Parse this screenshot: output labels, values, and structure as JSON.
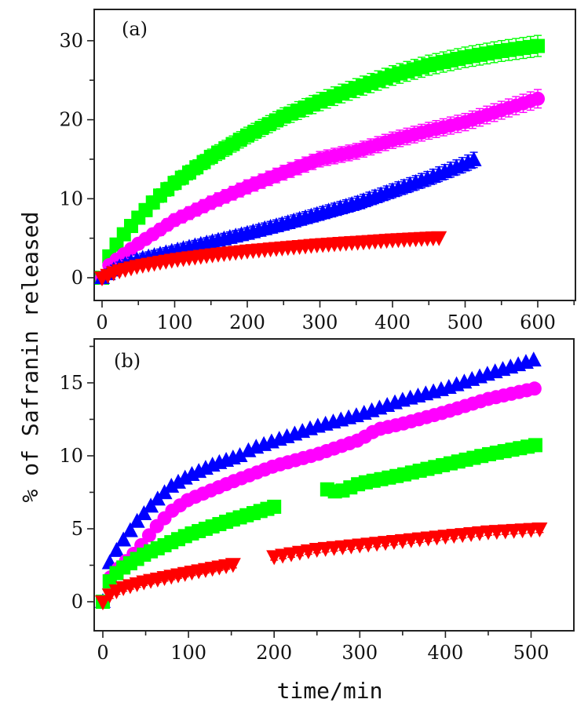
{
  "chart_data": [
    {
      "type": "scatter",
      "panel_label": "(a)",
      "xlabel": "",
      "ylabel": "% of Safranin released",
      "xlim": [
        -10,
        700
      ],
      "ylim": [
        -3,
        32
      ],
      "xticks": [
        0,
        100,
        200,
        300,
        400,
        500,
        600
      ],
      "yticks": [
        0,
        10,
        20,
        30
      ],
      "grid": false,
      "legend": "none",
      "series": [
        {
          "name": "green-squares",
          "marker": "square",
          "color": "#00ff00",
          "error_bars": true,
          "x_start": 0,
          "x_end": 605,
          "x_step": 10,
          "points": [
            [
              0,
              0
            ],
            [
              10,
              2.7
            ],
            [
              20,
              4.2
            ],
            [
              30,
              5.5
            ],
            [
              50,
              7.6
            ],
            [
              75,
              10
            ],
            [
              100,
              12
            ],
            [
              150,
              15.3
            ],
            [
              200,
              18
            ],
            [
              250,
              20.4
            ],
            [
              300,
              22.3
            ],
            [
              350,
              24
            ],
            [
              400,
              25.6
            ],
            [
              450,
              26.9
            ],
            [
              500,
              27.9
            ],
            [
              550,
              28.7
            ],
            [
              605,
              29.4
            ]
          ]
        },
        {
          "name": "magenta-circles",
          "marker": "circle",
          "color": "#ff00ff",
          "error_bars": true,
          "x_start": 0,
          "x_end": 605,
          "x_step": 10,
          "points": [
            [
              0,
              0
            ],
            [
              10,
              1.6
            ],
            [
              20,
              2.3
            ],
            [
              50,
              4.3
            ],
            [
              100,
              7.3
            ],
            [
              150,
              9.5
            ],
            [
              200,
              11.5
            ],
            [
              250,
              13.3
            ],
            [
              300,
              15
            ],
            [
              350,
              16
            ],
            [
              400,
              17.4
            ],
            [
              450,
              18.6
            ],
            [
              500,
              19.7
            ],
            [
              550,
              21.2
            ],
            [
              605,
              22.8
            ]
          ]
        },
        {
          "name": "blue-triangles",
          "marker": "triangle-up",
          "color": "#0000ff",
          "error_bars": true,
          "x_start": 0,
          "x_end": 519,
          "x_step": 8,
          "points": [
            [
              0,
              0
            ],
            [
              20,
              1.2
            ],
            [
              50,
              2.3
            ],
            [
              100,
              3.4
            ],
            [
              150,
              4.5
            ],
            [
              200,
              5.6
            ],
            [
              250,
              6.8
            ],
            [
              300,
              8.1
            ],
            [
              350,
              9.4
            ],
            [
              400,
              11
            ],
            [
              450,
              12.6
            ],
            [
              500,
              14.4
            ],
            [
              519,
              15.2
            ]
          ]
        },
        {
          "name": "red-inverted-triangles",
          "marker": "triangle-down",
          "color": "#ff0000",
          "error_bars": false,
          "x_start": 0,
          "x_end": 465,
          "x_step": 8,
          "points": [
            [
              0,
              0
            ],
            [
              20,
              0.8
            ],
            [
              50,
              1.5
            ],
            [
              100,
              2.3
            ],
            [
              150,
              2.9
            ],
            [
              200,
              3.4
            ],
            [
              250,
              3.8
            ],
            [
              300,
              4.2
            ],
            [
              350,
              4.5
            ],
            [
              400,
              4.8
            ],
            [
              465,
              5.1
            ]
          ]
        }
      ]
    },
    {
      "type": "scatter",
      "panel_label": "(b)",
      "xlabel": "time/min",
      "ylabel": "% of Safranin released",
      "xlim": [
        -10,
        560
      ],
      "ylim": [
        -2,
        18
      ],
      "xticks": [
        0,
        100,
        200,
        300,
        400,
        500
      ],
      "yticks": [
        0,
        5,
        10,
        15
      ],
      "grid": false,
      "legend": "none",
      "series": [
        {
          "name": "blue-triangles",
          "marker": "triangle-up",
          "color": "#0000ff",
          "error_bars": false,
          "ranges": [
            [
              0,
              160,
              8
            ],
            [
              170,
              511,
              9
            ]
          ],
          "points": [
            [
              0,
              0
            ],
            [
              5,
              2.3
            ],
            [
              10,
              2.9
            ],
            [
              20,
              3.9
            ],
            [
              40,
              5.5
            ],
            [
              60,
              6.8
            ],
            [
              80,
              7.9
            ],
            [
              100,
              8.6
            ],
            [
              130,
              9.4
            ],
            [
              160,
              10
            ],
            [
              175,
              10.5
            ],
            [
              200,
              11
            ],
            [
              250,
              12
            ],
            [
              300,
              12.8
            ],
            [
              350,
              13.8
            ],
            [
              400,
              14.6
            ],
            [
              450,
              15.6
            ],
            [
              511,
              16.7
            ]
          ]
        },
        {
          "name": "magenta-circles",
          "marker": "circle",
          "color": "#ff00ff",
          "error_bars": true,
          "ranges": [
            [
              0,
              511,
              9
            ]
          ],
          "points": [
            [
              0,
              0
            ],
            [
              5,
              1.4
            ],
            [
              20,
              2.4
            ],
            [
              40,
              3.5
            ],
            [
              60,
              5
            ],
            [
              80,
              6.2
            ],
            [
              100,
              7
            ],
            [
              150,
              8.2
            ],
            [
              200,
              9.3
            ],
            [
              250,
              10.1
            ],
            [
              300,
              11.1
            ],
            [
              320,
              11.8
            ],
            [
              350,
              12.2
            ],
            [
              400,
              13
            ],
            [
              450,
              13.9
            ],
            [
              511,
              14.7
            ]
          ]
        },
        {
          "name": "green-squares",
          "marker": "square",
          "color": "#00ff00",
          "error_bars": false,
          "ranges": [
            [
              0,
              205,
              8
            ],
            [
              262,
              511,
              9
            ]
          ],
          "points": [
            [
              0,
              0
            ],
            [
              5,
              1.1
            ],
            [
              10,
              1.6
            ],
            [
              20,
              2.2
            ],
            [
              50,
              3.3
            ],
            [
              100,
              4.6
            ],
            [
              150,
              5.6
            ],
            [
              205,
              6.6
            ],
            [
              262,
              7.7
            ],
            [
              275,
              7.5
            ],
            [
              300,
              8.1
            ],
            [
              350,
              8.7
            ],
            [
              400,
              9.4
            ],
            [
              450,
              10.1
            ],
            [
              511,
              10.8
            ]
          ]
        },
        {
          "name": "red-inverted-triangles",
          "marker": "triangle-down",
          "color": "#ff0000",
          "error_bars": true,
          "ranges": [
            [
              0,
              155,
              8
            ],
            [
              200,
              511,
              10
            ]
          ],
          "points": [
            [
              0,
              0
            ],
            [
              10,
              0.6
            ],
            [
              25,
              1
            ],
            [
              50,
              1.4
            ],
            [
              100,
              2
            ],
            [
              155,
              2.6
            ],
            [
              200,
              3.1
            ],
            [
              250,
              3.6
            ],
            [
              300,
              3.9
            ],
            [
              350,
              4.2
            ],
            [
              400,
              4.5
            ],
            [
              450,
              4.8
            ],
            [
              511,
              5
            ]
          ]
        }
      ]
    }
  ]
}
